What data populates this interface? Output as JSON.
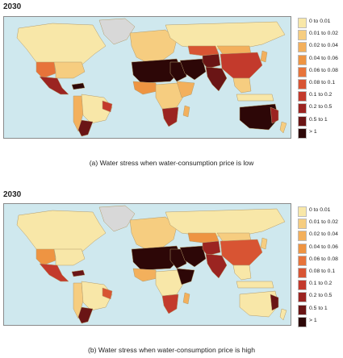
{
  "legend_items": [
    {
      "label": "0 to 0.01",
      "color": "#f8e7a8"
    },
    {
      "label": "0.01 to 0.02",
      "color": "#f6cd80"
    },
    {
      "label": "0.02 to 0.04",
      "color": "#f3b05c"
    },
    {
      "label": "0.04 to 0.06",
      "color": "#ee9442"
    },
    {
      "label": "0.06 to 0.08",
      "color": "#e7733a"
    },
    {
      "label": "0.08 to 0.1",
      "color": "#d85433"
    },
    {
      "label": "0.1 to 0.2",
      "color": "#c33a2c"
    },
    {
      "label": "0.2 to 0.5",
      "color": "#9b2421"
    },
    {
      "label": "0.5 to 1",
      "color": "#6a1515"
    },
    {
      "label": "> 1",
      "color": "#2d0707"
    }
  ],
  "panels": [
    {
      "year": "2030",
      "caption": "(a) Water stress when water-consumption price is low",
      "colors": {
        "na": "#f8e7a8",
        "greenland": "#d8d8d8",
        "usw": "#e7733a",
        "use": "#f6cd80",
        "mexico": "#9b2421",
        "caribbean": "#2d0707",
        "brazil": "#f8e7a8",
        "ne_brazil": "#c33a2c",
        "andes": "#f3b05c",
        "argentina": "#6a1515",
        "europe": "#f6cd80",
        "russia": "#f8e7a8",
        "sahara": "#2d0707",
        "egypt": "#2d0707",
        "w_africa": "#ee9442",
        "c_africa": "#f6cd80",
        "e_africa": "#f3b05c",
        "s_africa": "#9b2421",
        "madagascar": "#f3b05c",
        "mideast": "#2d0707",
        "iran": "#6a1515",
        "c_asia": "#d85433",
        "india": "#6a1515",
        "china": "#c33a2c",
        "mongolia": "#f3b05c",
        "se_asia": "#f6cd80",
        "japan": "#f3b05c",
        "indonesia": "#f8e7a8",
        "australia": "#2d0707",
        "aus_east": "#9b2421",
        "nz": "#f6cd80"
      }
    },
    {
      "year": "2030",
      "caption": "(b) Water stress when water-consumption price is high",
      "colors": {
        "na": "#f8e7a8",
        "greenland": "#d8d8d8",
        "usw": "#ee9442",
        "use": "#f8e7a8",
        "mexico": "#c33a2c",
        "caribbean": "#6a1515",
        "brazil": "#f8e7a8",
        "ne_brazil": "#d85433",
        "andes": "#f6cd80",
        "argentina": "#6a1515",
        "europe": "#f6cd80",
        "russia": "#f8e7a8",
        "sahara": "#2d0707",
        "egypt": "#2d0707",
        "w_africa": "#f3b05c",
        "c_africa": "#f8e7a8",
        "e_africa": "#2d0707",
        "s_africa": "#c33a2c",
        "madagascar": "#f3b05c",
        "mideast": "#2d0707",
        "iran": "#9b2421",
        "c_asia": "#ee9442",
        "india": "#9b2421",
        "china": "#d85433",
        "mongolia": "#f6cd80",
        "se_asia": "#f8e7a8",
        "japan": "#f6cd80",
        "indonesia": "#f8e7a8",
        "australia": "#f8e7a8",
        "aus_east": "#6a1515",
        "nz": "#f8e7a8"
      }
    }
  ]
}
